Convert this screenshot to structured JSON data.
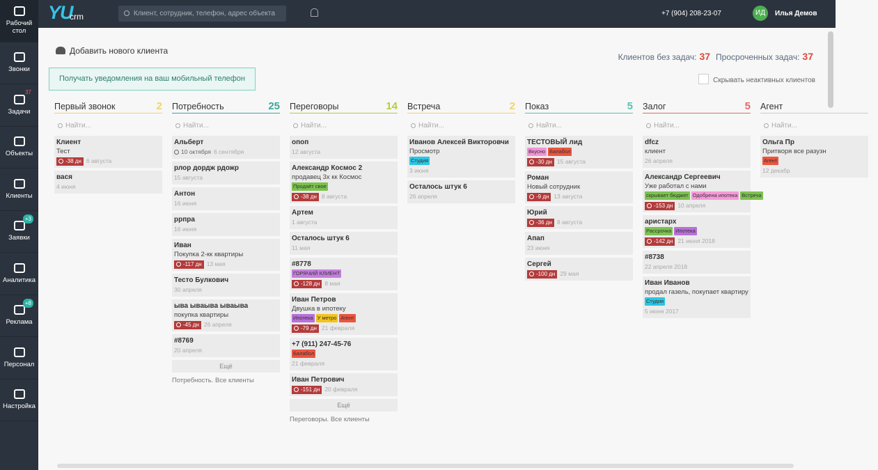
{
  "sidebar": [
    {
      "label": "Рабочий стол",
      "active": true
    },
    {
      "label": "Звонки"
    },
    {
      "label": "Задачи",
      "badge": "37"
    },
    {
      "label": "Объекты"
    },
    {
      "label": "Клиенты"
    },
    {
      "label": "Заявки",
      "badge": "+3"
    },
    {
      "label": "Аналитика"
    },
    {
      "label": "Реклама",
      "badge": "+8"
    },
    {
      "label": "Персонал"
    },
    {
      "label": "Настройка"
    }
  ],
  "header": {
    "logo": "YU",
    "logo_suffix": "crm",
    "search_placeholder": "Клиент, сотрудник, телефон, адрес объекта",
    "phone": "+7 (904) 208-23-07",
    "avatar": "ИД",
    "user": "Илья Демов"
  },
  "toolbar": {
    "add_client": "Добавить нового клиента",
    "no_tasks_label": "Клиентов без задач:",
    "no_tasks_count": "37",
    "overdue_label": "Просроченных задач:",
    "overdue_count": "37",
    "notify_button": "Получать уведомления на ваш мобильный телефон",
    "hide_inactive": "Скрывать неактивных клиентов"
  },
  "board": {
    "search_placeholder": "Найти...",
    "more": "Ещё",
    "columns": [
      {
        "title": "Первый звонок",
        "count": "2",
        "color": "#f0d46a",
        "cards": [
          {
            "name": "Клиент",
            "note": "Тест",
            "overdue": "-38 дн",
            "date": "6 августа"
          },
          {
            "name": "вася",
            "date": "4 июня"
          }
        ]
      },
      {
        "title": "Потребность",
        "count": "25",
        "color": "#3aa89a",
        "footer": "Потребность. Все клиенты",
        "cards": [
          {
            "name": "Альберт",
            "task": "10 октября",
            "date": "6 сентября"
          },
          {
            "name": "рлор дордж рдожр",
            "date": "15 августа"
          },
          {
            "name": "Антон",
            "date": "16 июня"
          },
          {
            "name": "ррпра",
            "date": "16 июня"
          },
          {
            "name": "Иван",
            "note": "Покупка 2-кк квартиры",
            "overdue": "-117 дн",
            "date": "13 мая"
          },
          {
            "name": "Тесто Булкович",
            "date": "30 апреля"
          },
          {
            "name": "ыва ываыва ываыва",
            "note": "покупка квартиры",
            "overdue": "-45 дн",
            "date": "26 апреля"
          },
          {
            "name": "#8769",
            "date": "20 апреля"
          }
        ]
      },
      {
        "title": "Переговоры",
        "count": "14",
        "color": "#b5cc3a",
        "footer": "Переговоры. Все клиенты",
        "cards": [
          {
            "name": "опоп",
            "date": "12 августа"
          },
          {
            "name": "Александр Космос 2",
            "note": "продавец 3х кк Космос",
            "tags": [
              {
                "text": "Продаёт свое",
                "color": "#7cc24f"
              }
            ],
            "overdue": "-38 дн",
            "date": "8 августа"
          },
          {
            "name": "Артем",
            "date": "1 августа"
          },
          {
            "name": "Осталось штук 6",
            "date": "11 мая"
          },
          {
            "name": "#8778",
            "tags": [
              {
                "text": "ГОРЯЧИЙ КЛИЕНТ",
                "color": "#c47fdc"
              }
            ],
            "overdue": "-128 дн",
            "date": "8 мая"
          },
          {
            "name": "Иван Петров",
            "note": "Двушка в ипотеку",
            "tags": [
              {
                "text": "Ипотека",
                "color": "#b770d8"
              },
              {
                "text": "У метро",
                "color": "#f2c41c"
              },
              {
                "text": "Агент",
                "color": "#e9553f"
              }
            ],
            "overdue": "-79 дн",
            "date": "21 февраля"
          },
          {
            "name": "+7 (911) 247-45-76",
            "tags": [
              {
                "text": "Балабол",
                "color": "#e9553f"
              }
            ],
            "date": "21 февраля"
          },
          {
            "name": "Иван Петрович",
            "overdue": "-151 дн",
            "date": "20 февраля"
          }
        ]
      },
      {
        "title": "Встреча",
        "count": "2",
        "color": "#f0d46a",
        "cards": [
          {
            "name": "Иванов Алексей Викторовчи",
            "note": "Просмотр",
            "tags": [
              {
                "text": "Студия",
                "color": "#2cc6e2"
              }
            ],
            "date": "3 июня"
          },
          {
            "name": "Осталось штук 6",
            "date": "26 апреля"
          }
        ]
      },
      {
        "title": "Показ",
        "count": "5",
        "color": "#57c2b0",
        "cards": [
          {
            "name": "ТЕСТОВЫЙ лид",
            "tags": [
              {
                "text": "Вкусно",
                "color": "#f394d6"
              },
              {
                "text": "Балабол",
                "color": "#e9553f"
              }
            ],
            "overdue": "-30 дн",
            "date": "15 августа"
          },
          {
            "name": "Роман",
            "note": "Новый сотрудник",
            "overdue": "-9 дн",
            "date": "13 августа"
          },
          {
            "name": "Юрий",
            "overdue": "-36 дн",
            "date": "8 августа"
          },
          {
            "name": "Апап",
            "date": "23 июня"
          },
          {
            "name": "Сергей",
            "overdue": "-100 дн",
            "date": "29 мая"
          }
        ]
      },
      {
        "title": "Залог",
        "count": "5",
        "color": "#e46a6a",
        "cards": [
          {
            "name": "dfcz",
            "note": "клиент",
            "date": "26 апреля"
          },
          {
            "name": "Александр Сергеевич",
            "note": "Уже работал с нами",
            "tags": [
              {
                "text": "скрывает бюджет",
                "color": "#7cc24f"
              },
              {
                "text": "Одобрена ипотека",
                "color": "#f59ad8"
              },
              {
                "text": "Встреча",
                "color": "#7cc24f"
              }
            ],
            "overdue": "-153 дн",
            "date": "10 апреля"
          },
          {
            "name": "аристарх",
            "tags": [
              {
                "text": "Рассрочка",
                "color": "#7cc24f"
              },
              {
                "text": "Ипотека",
                "color": "#b770d8"
              }
            ],
            "overdue": "-142 дн",
            "date": "21 июня 2018"
          },
          {
            "name": "#8738",
            "date": "22 апреля 2018"
          },
          {
            "name": "Иван Иванов",
            "note": "продал газель, покупает квартиру",
            "tags": [
              {
                "text": "Студия",
                "color": "#2cc6e2"
              }
            ],
            "date": "5 июня 2017"
          }
        ]
      },
      {
        "title": "Агент",
        "color": "#cccccc",
        "cards": [
          {
            "name": "Ольга Пр",
            "note": "Притворя все разузн",
            "tags": [
              {
                "text": "Агент",
                "color": "#e9553f"
              }
            ],
            "date": "12 декабр"
          }
        ]
      }
    ]
  }
}
